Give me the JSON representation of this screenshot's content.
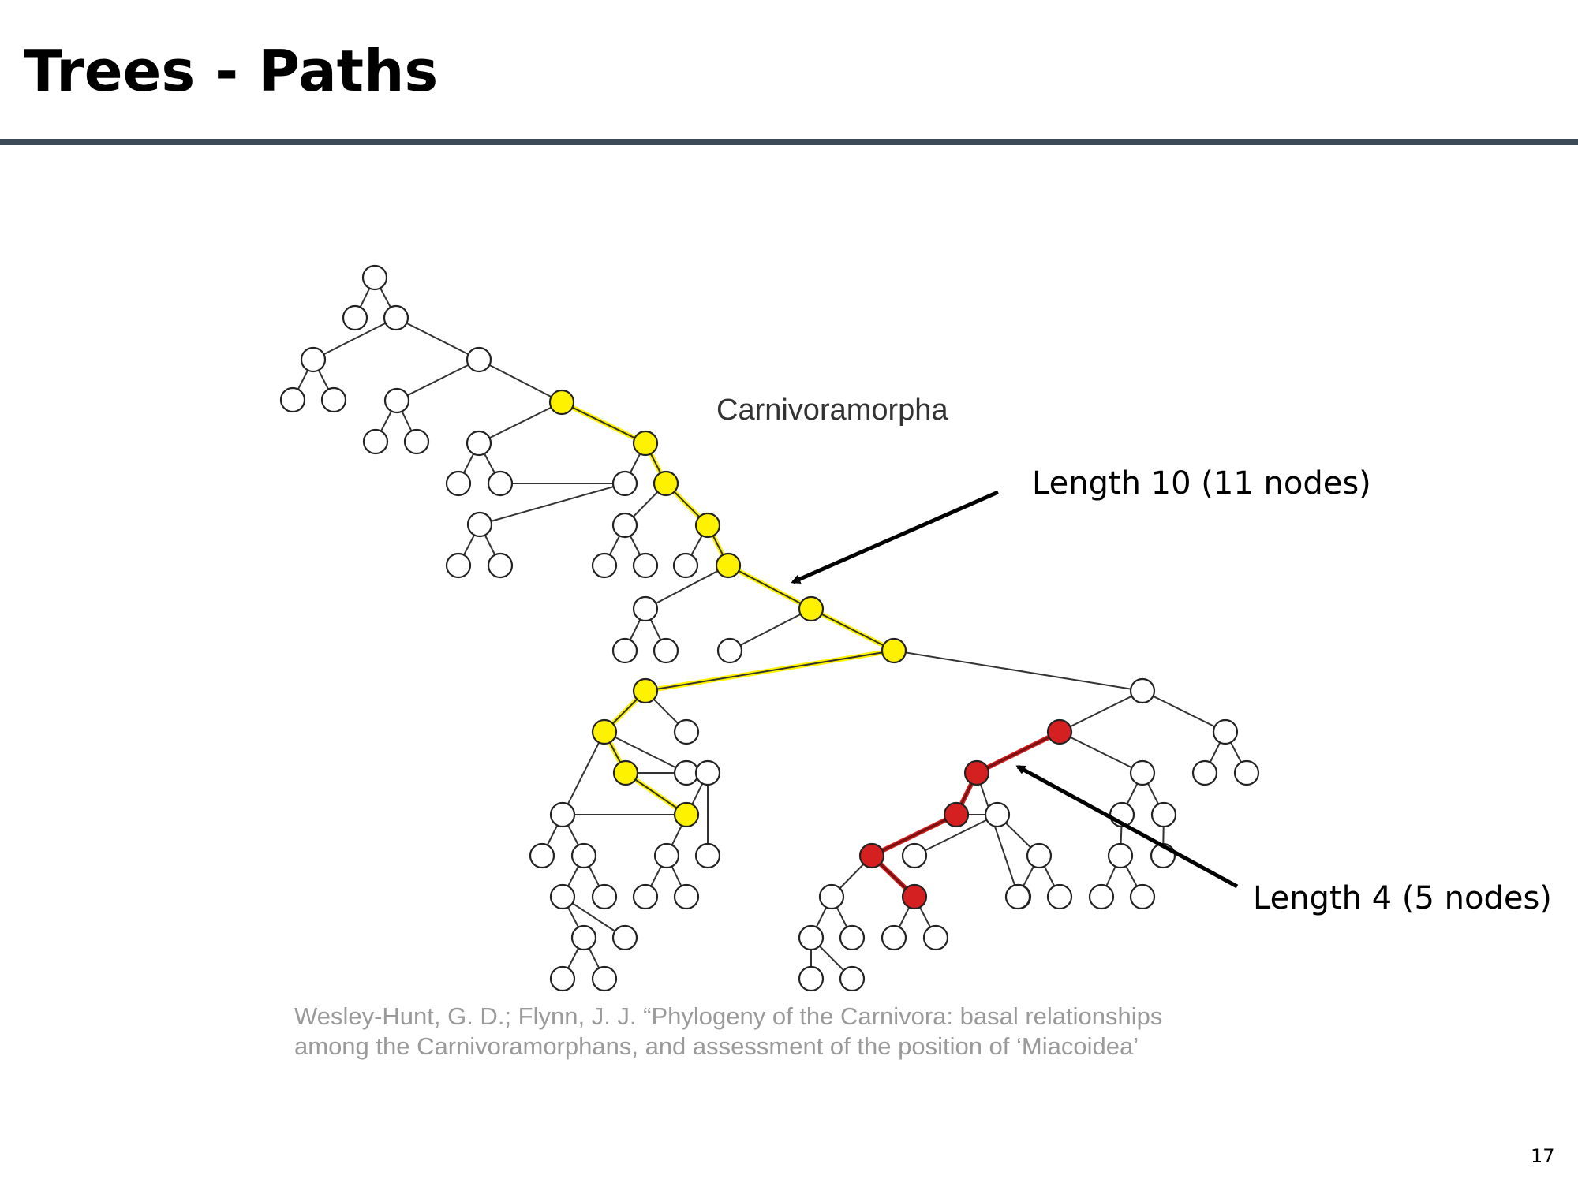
{
  "slide": {
    "title": "Trees - Paths",
    "page_number": "17"
  },
  "diagram": {
    "clade_label": "Carnivoramorpha",
    "annotations": {
      "long_path": "Length 10 (11 nodes)",
      "short_path": "Length 4 (5 nodes)"
    },
    "citation": {
      "line1": "Wesley-Hunt, G. D.; Flynn, J. J. “Phylogeny of the Carnivora: basal relationships",
      "line2": "among the Carnivoramorphans, and assessment of the position of ‘Miacoidea’"
    },
    "colors": {
      "long_path": "#fff200",
      "short_path": "#d42020",
      "node_default": "#ffffff",
      "edge": "#333333",
      "title_rule": "#3c4a58"
    },
    "highlighted_paths": {
      "long_path_nodes": 11,
      "long_path_length": 10,
      "short_path_nodes": 5,
      "short_path_length": 4
    }
  }
}
